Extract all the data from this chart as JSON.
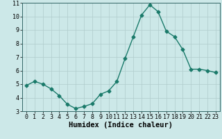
{
  "xlabel": "Humidex (Indice chaleur)",
  "ylabel": "",
  "x": [
    0,
    1,
    2,
    3,
    4,
    5,
    6,
    7,
    8,
    9,
    10,
    11,
    12,
    13,
    14,
    15,
    16,
    17,
    18,
    19,
    20,
    21,
    22,
    23
  ],
  "y": [
    4.9,
    5.2,
    5.0,
    4.65,
    4.15,
    3.5,
    3.2,
    3.35,
    3.55,
    4.25,
    4.5,
    5.2,
    6.9,
    8.5,
    10.1,
    10.85,
    10.35,
    8.9,
    8.5,
    7.55,
    6.1,
    6.1,
    6.0,
    5.85
  ],
  "line_color": "#1a7a6a",
  "marker": "D",
  "marker_size": 2.5,
  "bg_color": "#cce8e8",
  "grid_color": "#b0cccc",
  "axis_color": "#336666",
  "ylim": [
    3,
    11
  ],
  "xlim": [
    -0.5,
    23.5
  ],
  "yticks": [
    3,
    4,
    5,
    6,
    7,
    8,
    9,
    10,
    11
  ],
  "xticks": [
    0,
    1,
    2,
    3,
    4,
    5,
    6,
    7,
    8,
    9,
    10,
    11,
    12,
    13,
    14,
    15,
    16,
    17,
    18,
    19,
    20,
    21,
    22,
    23
  ],
  "tick_fontsize": 6,
  "label_fontsize": 7.5
}
